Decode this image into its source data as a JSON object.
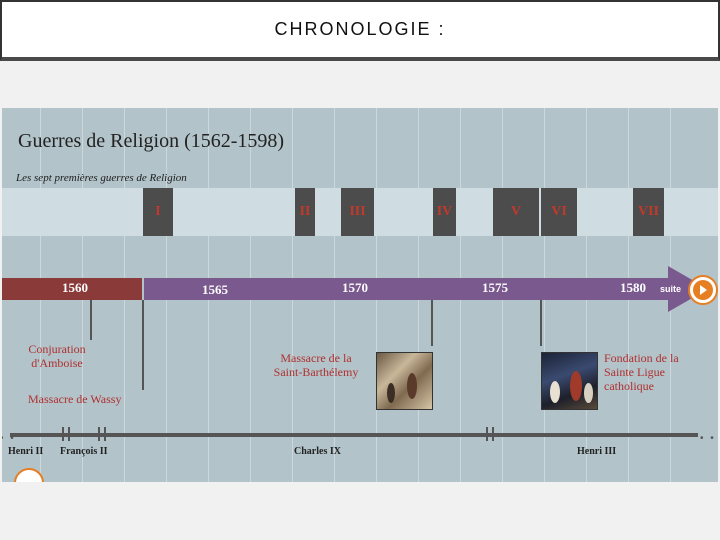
{
  "slide": {
    "title": "CHRONOLOGIE :"
  },
  "timeline": {
    "heading": "Guerres de Religion (1562-1598)",
    "subheading": "Les sept premières guerres de Religion",
    "wars": [
      "I",
      "II",
      "III",
      "IV",
      "V",
      "VI",
      "VII"
    ],
    "years": [
      "1560",
      "1565",
      "1570",
      "1575",
      "1580"
    ],
    "suite_label": "suite",
    "events": {
      "amboise": [
        "Conjuration",
        "d'Amboise"
      ],
      "wassy": "Massacre de Wassy",
      "barthelemy": [
        "Massacre de la",
        "Saint-Barthélemy"
      ],
      "ligue": [
        "Fondation de la",
        "Sainte Ligue",
        "catholique"
      ]
    },
    "kings": [
      "Henri II",
      "François II",
      "Charles IX",
      "Henri III"
    ]
  },
  "colors": {
    "brown_bar": "#8b3a3a",
    "purple_bar": "#7a5a8e",
    "war_text": "#c0392b",
    "event_text": "#b03030",
    "nav_accent": "#e67e22"
  },
  "icons": {
    "next": "next-arrow-icon",
    "prev": "prev-arrow-icon"
  }
}
